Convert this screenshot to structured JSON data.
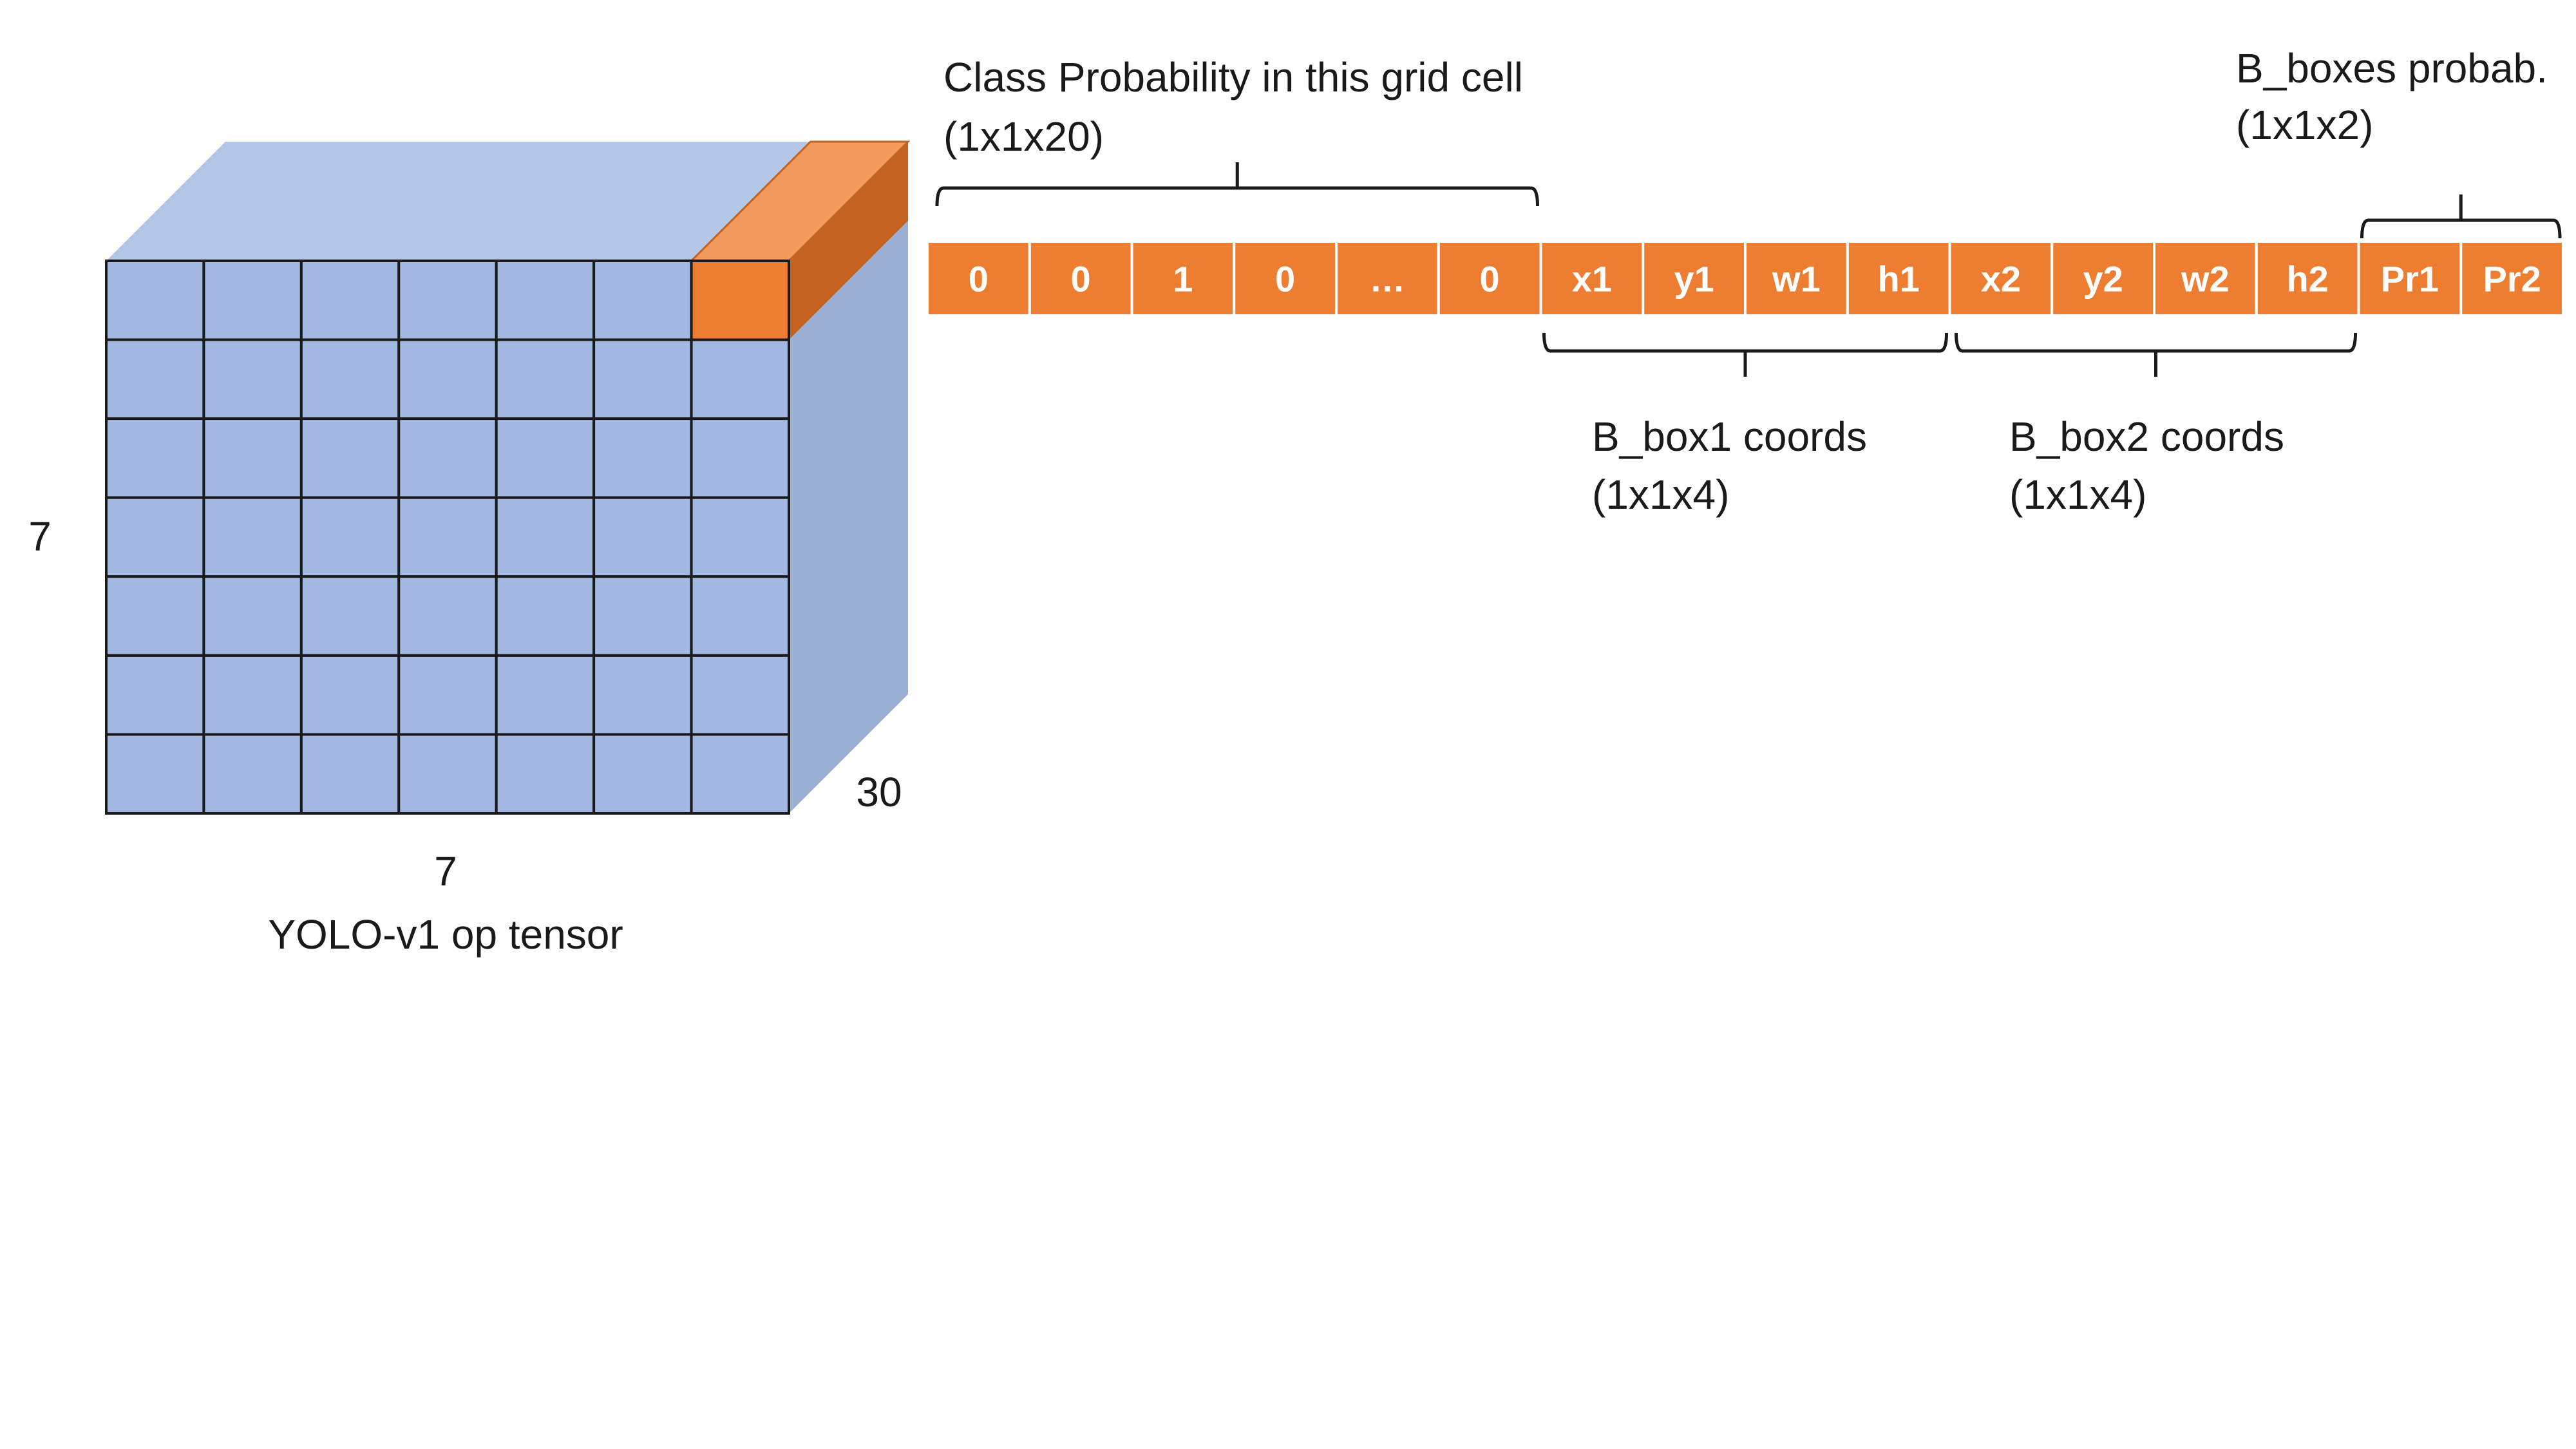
{
  "colors": {
    "grid_blue": "#a3b8e2",
    "top_face": "#b4c7e7",
    "side_face": "#9aafd4",
    "orange": "#ed7d31",
    "orange_top": "#f29a5e",
    "orange_side": "#c4621f",
    "line": "#1a1a1a"
  },
  "cube": {
    "rows": 7,
    "cols": 7,
    "height_label": "7",
    "width_label": "7",
    "depth_label": "30",
    "caption": "YOLO-v1 op tensor"
  },
  "vector": {
    "cells": [
      "0",
      "0",
      "1",
      "0",
      "…",
      "0",
      "x1",
      "y1",
      "w1",
      "h1",
      "x2",
      "y2",
      "w2",
      "h2",
      "Pr1",
      "Pr2"
    ]
  },
  "groups": {
    "class_prob": {
      "line1": "Class Probability in this grid cell",
      "line2": "(1x1x20)"
    },
    "box1": {
      "line1": "B_box1 coords",
      "line2": "(1x1x4)"
    },
    "box2": {
      "line1": "B_box2 coords",
      "line2": "(1x1x4)"
    },
    "box_prob": {
      "line1": "B_boxes probab.",
      "line2": "(1x1x2)"
    }
  }
}
